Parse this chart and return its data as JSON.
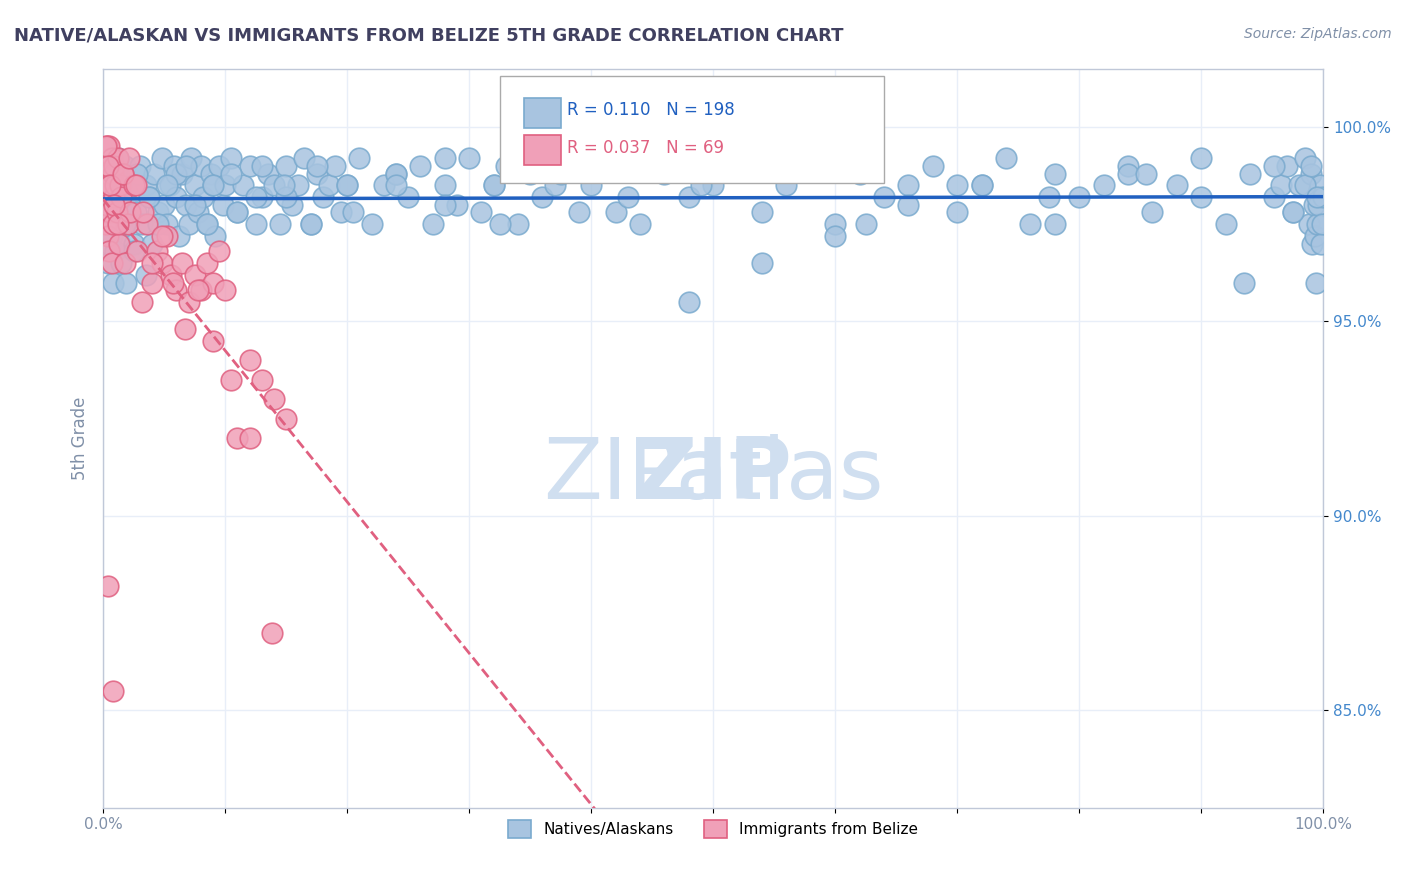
{
  "title": "NATIVE/ALASKAN VS IMMIGRANTS FROM BELIZE 5TH GRADE CORRELATION CHART",
  "source_text": "Source: ZipAtlas.com",
  "xlabel": "",
  "ylabel": "5th Grade",
  "xlim": [
    0.0,
    1.0
  ],
  "ylim": [
    0.825,
    1.015
  ],
  "xticks": [
    0.0,
    0.1,
    0.2,
    0.3,
    0.4,
    0.5,
    0.6,
    0.7,
    0.8,
    0.9,
    1.0
  ],
  "xticklabels": [
    "0.0%",
    "",
    "",
    "",
    "",
    "",
    "",
    "",
    "",
    "",
    "100.0%"
  ],
  "yticks": [
    0.85,
    0.9,
    0.95,
    1.0
  ],
  "yticklabels": [
    "85.0%",
    "90.0%",
    "95.0%",
    "100.0%"
  ],
  "R_blue": 0.11,
  "N_blue": 198,
  "R_pink": 0.037,
  "N_pink": 69,
  "blue_color": "#a8c4e0",
  "blue_edge": "#7aaace",
  "pink_color": "#f0a0b8",
  "pink_edge": "#e06080",
  "blue_line_color": "#2060c0",
  "pink_line_color": "#e06080",
  "watermark_text": "ZIPatlas",
  "watermark_color": "#d0dff0",
  "legend_labels": [
    "Natives/Alaskans",
    "Immigrants from Belize"
  ],
  "title_color": "#404060",
  "axis_color": "#c0c8d8",
  "grid_color": "#e8eef8",
  "tick_color": "#8090a8",
  "background_color": "#ffffff",
  "blue_scatter_x": [
    0.002,
    0.003,
    0.004,
    0.005,
    0.005,
    0.006,
    0.007,
    0.008,
    0.008,
    0.009,
    0.01,
    0.011,
    0.012,
    0.013,
    0.014,
    0.015,
    0.016,
    0.018,
    0.019,
    0.02,
    0.022,
    0.024,
    0.025,
    0.027,
    0.03,
    0.032,
    0.035,
    0.038,
    0.04,
    0.042,
    0.045,
    0.048,
    0.05,
    0.052,
    0.055,
    0.058,
    0.06,
    0.062,
    0.065,
    0.068,
    0.07,
    0.072,
    0.075,
    0.078,
    0.08,
    0.082,
    0.085,
    0.088,
    0.09,
    0.092,
    0.095,
    0.098,
    0.1,
    0.105,
    0.11,
    0.115,
    0.12,
    0.125,
    0.13,
    0.135,
    0.14,
    0.145,
    0.15,
    0.155,
    0.16,
    0.165,
    0.17,
    0.175,
    0.18,
    0.185,
    0.19,
    0.195,
    0.2,
    0.21,
    0.22,
    0.23,
    0.24,
    0.25,
    0.26,
    0.27,
    0.28,
    0.29,
    0.3,
    0.31,
    0.32,
    0.33,
    0.34,
    0.35,
    0.36,
    0.37,
    0.38,
    0.39,
    0.4,
    0.42,
    0.44,
    0.46,
    0.48,
    0.5,
    0.52,
    0.54,
    0.56,
    0.58,
    0.6,
    0.62,
    0.64,
    0.66,
    0.68,
    0.7,
    0.72,
    0.74,
    0.76,
    0.78,
    0.8,
    0.82,
    0.84,
    0.86,
    0.88,
    0.9,
    0.92,
    0.94,
    0.96,
    0.965,
    0.97,
    0.975,
    0.98,
    0.985,
    0.988,
    0.99,
    0.991,
    0.992,
    0.993,
    0.994,
    0.995,
    0.996,
    0.997,
    0.998,
    0.999,
    1.0,
    0.003,
    0.006,
    0.015,
    0.025,
    0.035,
    0.045,
    0.06,
    0.075,
    0.09,
    0.11,
    0.13,
    0.15,
    0.17,
    0.2,
    0.24,
    0.28,
    0.32,
    0.37,
    0.42,
    0.48,
    0.54,
    0.6,
    0.66,
    0.72,
    0.78,
    0.84,
    0.9,
    0.96,
    0.004,
    0.008,
    0.012,
    0.018,
    0.028,
    0.038,
    0.052,
    0.068,
    0.085,
    0.105,
    0.125,
    0.148,
    0.175,
    0.205,
    0.24,
    0.28,
    0.325,
    0.375,
    0.43,
    0.49,
    0.555,
    0.625,
    0.7,
    0.775,
    0.855,
    0.935,
    0.975,
    0.985,
    0.99,
    0.995
  ],
  "blue_scatter_y": [
    0.975,
    0.985,
    0.965,
    0.99,
    0.97,
    0.98,
    0.972,
    0.985,
    0.96,
    0.978,
    0.968,
    0.982,
    0.975,
    0.988,
    0.97,
    0.965,
    0.985,
    0.99,
    0.96,
    0.975,
    0.98,
    0.985,
    0.97,
    0.978,
    0.99,
    0.975,
    0.985,
    0.982,
    0.97,
    0.988,
    0.978,
    0.992,
    0.98,
    0.975,
    0.985,
    0.99,
    0.982,
    0.972,
    0.988,
    0.98,
    0.975,
    0.992,
    0.985,
    0.978,
    0.99,
    0.982,
    0.975,
    0.988,
    0.985,
    0.972,
    0.99,
    0.98,
    0.985,
    0.992,
    0.978,
    0.985,
    0.99,
    0.975,
    0.982,
    0.988,
    0.985,
    0.975,
    0.99,
    0.98,
    0.985,
    0.992,
    0.975,
    0.988,
    0.982,
    0.985,
    0.99,
    0.978,
    0.985,
    0.992,
    0.975,
    0.985,
    0.988,
    0.982,
    0.99,
    0.975,
    0.985,
    0.98,
    0.992,
    0.978,
    0.985,
    0.99,
    0.975,
    0.988,
    0.982,
    0.985,
    0.99,
    0.978,
    0.985,
    0.992,
    0.975,
    0.988,
    0.982,
    0.985,
    0.99,
    0.978,
    0.985,
    0.992,
    0.975,
    0.988,
    0.982,
    0.985,
    0.99,
    0.978,
    0.985,
    0.992,
    0.975,
    0.988,
    0.982,
    0.985,
    0.99,
    0.978,
    0.985,
    0.992,
    0.975,
    0.988,
    0.982,
    0.985,
    0.99,
    0.978,
    0.985,
    0.992,
    0.975,
    0.988,
    0.97,
    0.98,
    0.972,
    0.96,
    0.975,
    0.98,
    0.985,
    0.97,
    0.975,
    0.982,
    0.99,
    0.978,
    0.985,
    0.968,
    0.962,
    0.975,
    0.988,
    0.98,
    0.985,
    0.978,
    0.99,
    0.982,
    0.975,
    0.985,
    0.988,
    0.98,
    0.985,
    0.99,
    0.978,
    0.955,
    0.965,
    0.972,
    0.98,
    0.985,
    0.975,
    0.988,
    0.982,
    0.99,
    0.978,
    0.985,
    0.992,
    0.975,
    0.988,
    0.982,
    0.985,
    0.99,
    0.975,
    0.988,
    0.982,
    0.985,
    0.99,
    0.978,
    0.985,
    0.992,
    0.975,
    0.988,
    0.982,
    0.985,
    0.99,
    0.975,
    0.985,
    0.982,
    0.988,
    0.96,
    0.978,
    0.985,
    0.99,
    0.982
  ],
  "pink_scatter_x": [
    0.001,
    0.002,
    0.002,
    0.003,
    0.003,
    0.004,
    0.004,
    0.005,
    0.005,
    0.006,
    0.006,
    0.007,
    0.007,
    0.008,
    0.008,
    0.009,
    0.009,
    0.01,
    0.011,
    0.012,
    0.013,
    0.014,
    0.015,
    0.016,
    0.018,
    0.02,
    0.022,
    0.025,
    0.028,
    0.032,
    0.036,
    0.04,
    0.044,
    0.048,
    0.052,
    0.056,
    0.06,
    0.065,
    0.07,
    0.075,
    0.08,
    0.085,
    0.09,
    0.095,
    0.1,
    0.11,
    0.12,
    0.13,
    0.14,
    0.15,
    0.002,
    0.004,
    0.006,
    0.009,
    0.012,
    0.016,
    0.021,
    0.027,
    0.033,
    0.04,
    0.048,
    0.057,
    0.067,
    0.078,
    0.09,
    0.105,
    0.12,
    0.138,
    0.004,
    0.008
  ],
  "pink_scatter_y": [
    0.99,
    0.985,
    0.975,
    0.995,
    0.98,
    0.988,
    0.972,
    0.995,
    0.968,
    0.985,
    0.978,
    0.992,
    0.965,
    0.988,
    0.975,
    0.99,
    0.982,
    0.985,
    0.978,
    0.992,
    0.97,
    0.985,
    0.982,
    0.988,
    0.965,
    0.975,
    0.978,
    0.985,
    0.968,
    0.955,
    0.975,
    0.96,
    0.968,
    0.965,
    0.972,
    0.962,
    0.958,
    0.965,
    0.955,
    0.962,
    0.958,
    0.965,
    0.96,
    0.968,
    0.958,
    0.92,
    0.94,
    0.935,
    0.93,
    0.925,
    0.995,
    0.99,
    0.985,
    0.98,
    0.975,
    0.988,
    0.992,
    0.985,
    0.978,
    0.965,
    0.972,
    0.96,
    0.948,
    0.958,
    0.945,
    0.935,
    0.92,
    0.87,
    0.882,
    0.855
  ]
}
